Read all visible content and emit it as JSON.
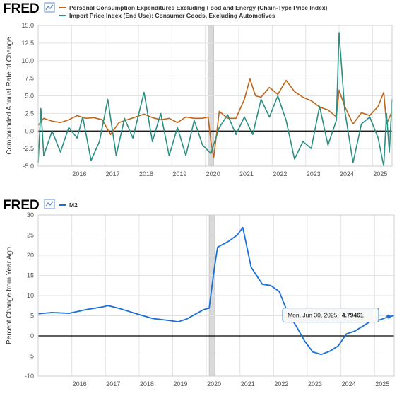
{
  "charts": [
    {
      "brand": "FRED",
      "icon": "line-chart-icon",
      "ylabel": "Compounded Annual Rate of Change",
      "chart_data": {
        "type": "line",
        "ylim": [
          -5,
          15
        ],
        "yticks": [
          "15.0",
          "12.5",
          "10.0",
          "7.5",
          "5.0",
          "2.5",
          "0.0",
          "-2.5",
          "-5.0"
        ],
        "ytick_values": [
          15,
          12.5,
          10,
          7.5,
          5,
          2.5,
          0,
          -2.5,
          -5
        ],
        "xlim": [
          "2015-01",
          "2025-08"
        ],
        "xticks": [
          "2016",
          "2017",
          "2018",
          "2019",
          "2020",
          "2021",
          "2022",
          "2023",
          "2024",
          "2025"
        ],
        "grid": true,
        "recession": [
          "2020-02",
          "2020-04"
        ],
        "zero_line": true,
        "legend": "top-left",
        "series": [
          {
            "name": "Personal Consumption Expenditures Excluding Food and Energy (Chain-Type Price Index)",
            "color": "#c0651a",
            "anchors": [
              [
                "2015-01",
                0.8
              ],
              [
                "2015-03",
                1.8
              ],
              [
                "2015-06",
                1.4
              ],
              [
                "2015-09",
                1.2
              ],
              [
                "2015-12",
                1.6
              ],
              [
                "2016-03",
                2.2
              ],
              [
                "2016-06",
                1.8
              ],
              [
                "2016-09",
                1.9
              ],
              [
                "2016-12",
                1.6
              ],
              [
                "2017-03",
                -0.5
              ],
              [
                "2017-06",
                1.2
              ],
              [
                "2017-09",
                1.6
              ],
              [
                "2017-12",
                2.0
              ],
              [
                "2018-03",
                2.4
              ],
              [
                "2018-06",
                1.9
              ],
              [
                "2018-09",
                1.6
              ],
              [
                "2018-12",
                1.8
              ],
              [
                "2019-03",
                1.2
              ],
              [
                "2019-06",
                2.0
              ],
              [
                "2019-09",
                1.8
              ],
              [
                "2019-12",
                1.8
              ],
              [
                "2020-02",
                2.0
              ],
              [
                "2020-03",
                -1.5
              ],
              [
                "2020-04",
                -3.8
              ],
              [
                "2020-06",
                2.8
              ],
              [
                "2020-09",
                1.8
              ],
              [
                "2020-12",
                1.8
              ],
              [
                "2021-03",
                4.5
              ],
              [
                "2021-05",
                7.4
              ],
              [
                "2021-07",
                5.0
              ],
              [
                "2021-09",
                4.8
              ],
              [
                "2021-12",
                6.2
              ],
              [
                "2022-03",
                5.2
              ],
              [
                "2022-06",
                7.2
              ],
              [
                "2022-09",
                5.6
              ],
              [
                "2022-12",
                4.8
              ],
              [
                "2023-03",
                4.3
              ],
              [
                "2023-06",
                3.4
              ],
              [
                "2023-09",
                3.0
              ],
              [
                "2023-12",
                2.0
              ],
              [
                "2024-01",
                5.8
              ],
              [
                "2024-03",
                3.5
              ],
              [
                "2024-06",
                1.0
              ],
              [
                "2024-09",
                2.6
              ],
              [
                "2024-12",
                2.2
              ],
              [
                "2025-03",
                3.5
              ],
              [
                "2025-05",
                5.5
              ],
              [
                "2025-06",
                1.0
              ],
              [
                "2025-08",
                2.8
              ]
            ]
          },
          {
            "name": "Import Price Index (End Use): Consumer Goods, Excluding Automotives",
            "color": "#2b8f84",
            "anchors": [
              [
                "2015-01",
                -4.5
              ],
              [
                "2015-02",
                3.2
              ],
              [
                "2015-03",
                -3.5
              ],
              [
                "2015-06",
                0.0
              ],
              [
                "2015-09",
                -3.0
              ],
              [
                "2015-12",
                0.5
              ],
              [
                "2016-03",
                -1.0
              ],
              [
                "2016-05",
                2.0
              ],
              [
                "2016-08",
                -4.2
              ],
              [
                "2016-11",
                -1.5
              ],
              [
                "2017-02",
                4.5
              ],
              [
                "2017-05",
                -3.5
              ],
              [
                "2017-08",
                1.8
              ],
              [
                "2017-11",
                -1.0
              ],
              [
                "2018-03",
                5.5
              ],
              [
                "2018-06",
                -1.5
              ],
              [
                "2018-09",
                2.5
              ],
              [
                "2018-12",
                -3.5
              ],
              [
                "2019-03",
                0.5
              ],
              [
                "2019-06",
                -3.5
              ],
              [
                "2019-09",
                1.5
              ],
              [
                "2019-12",
                -2.0
              ],
              [
                "2020-03",
                -3.2
              ],
              [
                "2020-06",
                0.5
              ],
              [
                "2020-09",
                2.3
              ],
              [
                "2020-12",
                -0.5
              ],
              [
                "2021-03",
                2.0
              ],
              [
                "2021-06",
                -0.5
              ],
              [
                "2021-09",
                4.5
              ],
              [
                "2021-12",
                2.0
              ],
              [
                "2022-03",
                5.0
              ],
              [
                "2022-06",
                1.5
              ],
              [
                "2022-09",
                -4.0
              ],
              [
                "2022-12",
                -1.5
              ],
              [
                "2023-03",
                -2.5
              ],
              [
                "2023-06",
                3.5
              ],
              [
                "2023-09",
                -2.0
              ],
              [
                "2023-12",
                1.5
              ],
              [
                "2024-01",
                14.0
              ],
              [
                "2024-03",
                3.0
              ],
              [
                "2024-06",
                -4.5
              ],
              [
                "2024-09",
                1.0
              ],
              [
                "2024-12",
                2.0
              ],
              [
                "2025-03",
                -1.0
              ],
              [
                "2025-05",
                -5.0
              ],
              [
                "2025-06",
                2.5
              ],
              [
                "2025-07",
                -3.0
              ],
              [
                "2025-08",
                4.5
              ]
            ]
          }
        ]
      }
    },
    {
      "brand": "FRED",
      "icon": "line-chart-icon",
      "ylabel": "Percent Change from Year Ago",
      "tooltip": {
        "date": "Mon, Jun 30, 2025:",
        "value": "4.79461"
      },
      "chart_data": {
        "type": "line",
        "ylim": [
          -10,
          30
        ],
        "yticks": [
          "30",
          "25",
          "20",
          "15",
          "10",
          "5",
          "0",
          "-5",
          "-10"
        ],
        "ytick_values": [
          30,
          25,
          20,
          15,
          10,
          5,
          0,
          -5,
          -10
        ],
        "xlim": [
          "2015-01",
          "2025-08"
        ],
        "xticks": [
          "2016",
          "2017",
          "2018",
          "2019",
          "2020",
          "2021",
          "2022",
          "2023",
          "2024",
          "2025"
        ],
        "grid": true,
        "recession": [
          "2020-02",
          "2020-04"
        ],
        "zero_line": true,
        "legend": "top-left",
        "highlight_point": [
          "2025-06",
          4.79461
        ],
        "series": [
          {
            "name": "M2",
            "color": "#1a6fd8",
            "anchors": [
              [
                "2015-01",
                5.5
              ],
              [
                "2015-06",
                5.8
              ],
              [
                "2015-12",
                5.6
              ],
              [
                "2016-06",
                6.5
              ],
              [
                "2016-12",
                7.2
              ],
              [
                "2017-02",
                7.5
              ],
              [
                "2017-06",
                6.8
              ],
              [
                "2017-12",
                5.5
              ],
              [
                "2018-06",
                4.3
              ],
              [
                "2018-12",
                3.8
              ],
              [
                "2019-03",
                3.5
              ],
              [
                "2019-06",
                4.2
              ],
              [
                "2019-12",
                6.5
              ],
              [
                "2020-02",
                6.9
              ],
              [
                "2020-04",
                17.5
              ],
              [
                "2020-05",
                22.0
              ],
              [
                "2020-09",
                23.5
              ],
              [
                "2020-12",
                25.0
              ],
              [
                "2021-02",
                26.9
              ],
              [
                "2021-05",
                17.0
              ],
              [
                "2021-09",
                12.8
              ],
              [
                "2021-12",
                12.5
              ],
              [
                "2022-03",
                11.0
              ],
              [
                "2022-06",
                5.8
              ],
              [
                "2022-09",
                2.5
              ],
              [
                "2022-12",
                -1.2
              ],
              [
                "2023-03",
                -4.0
              ],
              [
                "2023-06",
                -4.6
              ],
              [
                "2023-09",
                -3.8
              ],
              [
                "2023-12",
                -2.5
              ],
              [
                "2024-03",
                0.5
              ],
              [
                "2024-06",
                1.2
              ],
              [
                "2024-09",
                2.5
              ],
              [
                "2024-12",
                3.8
              ],
              [
                "2025-03",
                4.0
              ],
              [
                "2025-06",
                4.79461
              ],
              [
                "2025-08",
                5.0
              ]
            ]
          }
        ]
      }
    }
  ]
}
